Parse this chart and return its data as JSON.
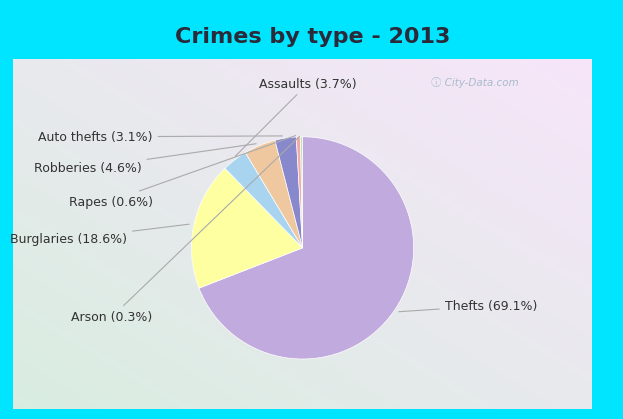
{
  "title": "Crimes by type - 2013",
  "labels": [
    "Thefts",
    "Burglaries",
    "Assaults",
    "Robberies",
    "Auto thefts",
    "Rapes",
    "Arson"
  ],
  "values": [
    69.1,
    18.6,
    3.7,
    4.6,
    3.1,
    0.6,
    0.3
  ],
  "colors": [
    "#c0aade",
    "#feffa0",
    "#a8d4f0",
    "#f0c8a0",
    "#8888cc",
    "#f0aaaa",
    "#c0e0b8"
  ],
  "bg_outer": "#00e5ff",
  "bg_inner_tl": "#d8eedc",
  "bg_inner_br": "#e8eef8",
  "title_fontsize": 16,
  "label_fontsize": 9,
  "startangle": 90,
  "label_annotations": [
    {
      "label": "Thefts (69.1%)",
      "xt": 1.28,
      "yt": -0.52,
      "ha": "left"
    },
    {
      "label": "Burglaries (18.6%)",
      "xt": -1.58,
      "yt": 0.08,
      "ha": "right"
    },
    {
      "label": "Assaults (3.7%)",
      "xt": 0.05,
      "yt": 1.48,
      "ha": "center"
    },
    {
      "label": "Robberies (4.6%)",
      "xt": -1.45,
      "yt": 0.72,
      "ha": "right"
    },
    {
      "label": "Auto thefts (3.1%)",
      "xt": -1.35,
      "yt": 1.0,
      "ha": "right"
    },
    {
      "label": "Rapes (0.6%)",
      "xt": -1.35,
      "yt": 0.42,
      "ha": "right"
    },
    {
      "label": "Arson (0.3%)",
      "xt": -1.35,
      "yt": -0.62,
      "ha": "right"
    }
  ]
}
